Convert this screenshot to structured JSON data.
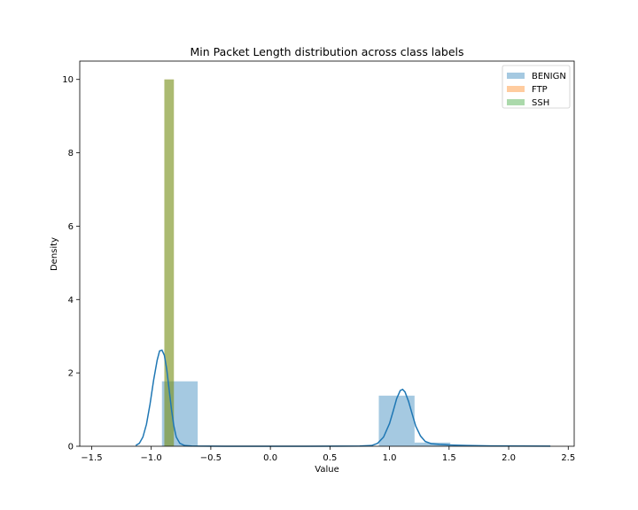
{
  "chart_data": {
    "type": "bar",
    "title": "Min Packet Length distribution across class labels",
    "xlabel": "Value",
    "ylabel": "Density",
    "xlim": [
      -1.6,
      2.55
    ],
    "ylim": [
      0,
      10.5
    ],
    "xticks": [
      -1.5,
      -1.0,
      -0.5,
      0.0,
      0.5,
      1.0,
      1.5,
      2.0,
      2.5
    ],
    "xtick_labels": [
      "−1.5",
      "−1.0",
      "−0.5",
      "0.0",
      "0.5",
      "1.0",
      "1.5",
      "2.0",
      "2.5"
    ],
    "yticks": [
      0,
      2,
      4,
      6,
      8,
      10
    ],
    "ytick_labels": [
      "0",
      "2",
      "4",
      "6",
      "8",
      "10"
    ],
    "legend_position": "top-right",
    "grid": false,
    "series": [
      {
        "name": "BENIGN",
        "color": "#1f77b4",
        "bins": [
          {
            "x0": -0.91,
            "x1": -0.61,
            "density": 1.77
          },
          {
            "x0": 0.91,
            "x1": 1.21,
            "density": 1.38
          },
          {
            "x0": 1.21,
            "x1": 1.51,
            "density": 0.1
          }
        ],
        "kde": [
          [
            -1.13,
            0.02
          ],
          [
            -1.1,
            0.08
          ],
          [
            -1.07,
            0.25
          ],
          [
            -1.04,
            0.6
          ],
          [
            -1.01,
            1.15
          ],
          [
            -0.98,
            1.8
          ],
          [
            -0.95,
            2.35
          ],
          [
            -0.93,
            2.6
          ],
          [
            -0.91,
            2.62
          ],
          [
            -0.89,
            2.48
          ],
          [
            -0.87,
            2.1
          ],
          [
            -0.85,
            1.55
          ],
          [
            -0.83,
            1.0
          ],
          [
            -0.81,
            0.55
          ],
          [
            -0.79,
            0.25
          ],
          [
            -0.76,
            0.08
          ],
          [
            -0.72,
            0.02
          ],
          [
            -0.66,
            0.005
          ],
          [
            -0.3,
            0.0
          ],
          [
            0.3,
            0.0
          ],
          [
            0.75,
            0.005
          ],
          [
            0.85,
            0.02
          ],
          [
            0.9,
            0.08
          ],
          [
            0.95,
            0.25
          ],
          [
            1.0,
            0.62
          ],
          [
            1.03,
            0.95
          ],
          [
            1.06,
            1.3
          ],
          [
            1.09,
            1.52
          ],
          [
            1.11,
            1.55
          ],
          [
            1.13,
            1.48
          ],
          [
            1.16,
            1.22
          ],
          [
            1.19,
            0.88
          ],
          [
            1.22,
            0.55
          ],
          [
            1.26,
            0.28
          ],
          [
            1.3,
            0.13
          ],
          [
            1.35,
            0.07
          ],
          [
            1.42,
            0.05
          ],
          [
            1.5,
            0.035
          ],
          [
            1.65,
            0.02
          ],
          [
            1.85,
            0.01
          ],
          [
            2.1,
            0.006
          ],
          [
            2.35,
            0.004
          ]
        ]
      },
      {
        "name": "FTP",
        "color": "#ff7f0e",
        "bins": [
          {
            "x0": -0.89,
            "x1": -0.81,
            "density": 10.0
          }
        ]
      },
      {
        "name": "SSH",
        "color": "#2ca02c",
        "bins": [
          {
            "x0": -0.89,
            "x1": -0.81,
            "density": 10.0
          }
        ]
      }
    ]
  }
}
